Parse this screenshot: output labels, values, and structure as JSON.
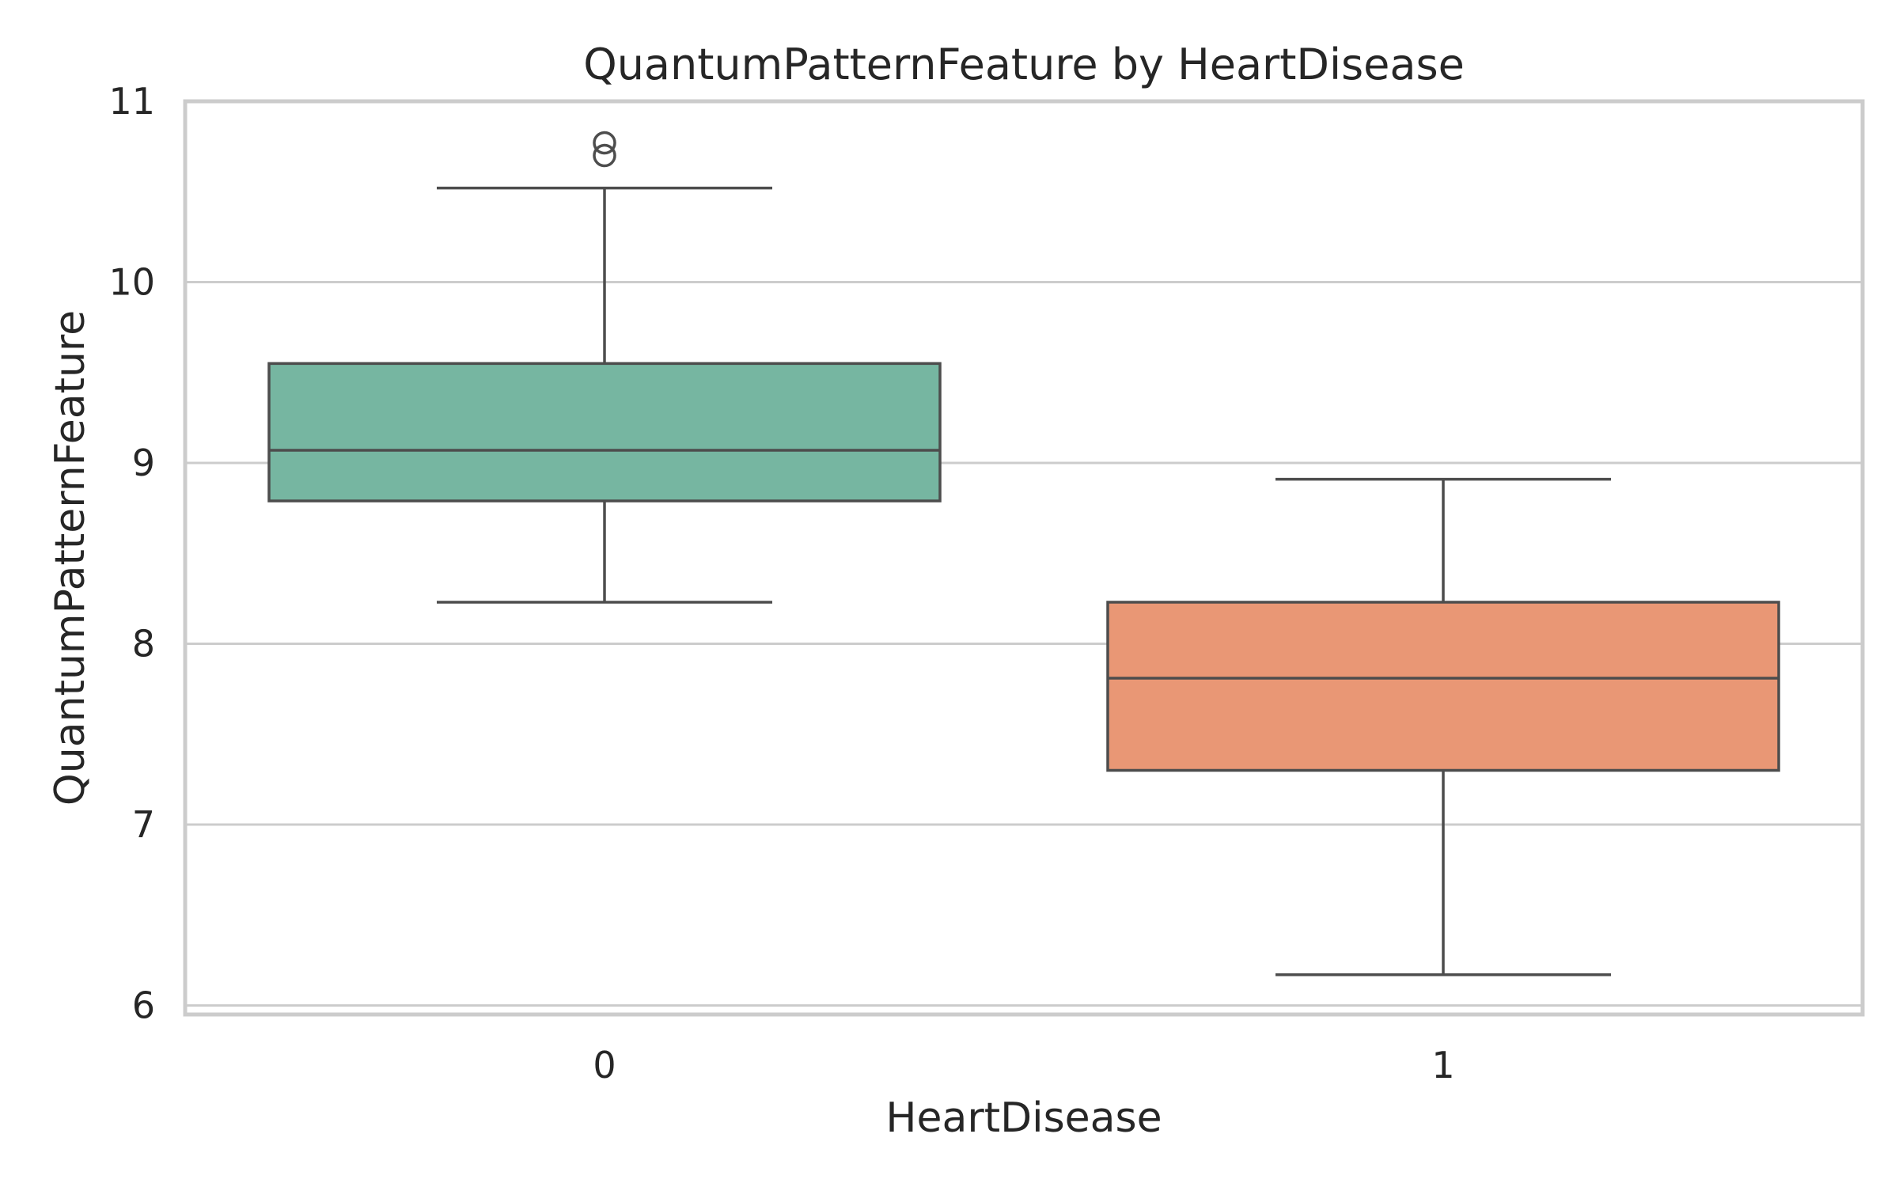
{
  "chart_data": {
    "type": "box",
    "title": "QuantumPatternFeature by HeartDisease",
    "xlabel": "HeartDisease",
    "ylabel": "QuantumPatternFeature",
    "categories": [
      "0",
      "1"
    ],
    "ylim": [
      5.95,
      11.0
    ],
    "yticks": [
      6,
      7,
      8,
      9,
      10,
      11
    ],
    "grid": true,
    "colors": [
      "#76b6a1",
      "#e99775"
    ],
    "boxes": [
      {
        "category": "0",
        "whisker_low": 8.23,
        "q1": 8.79,
        "median": 9.07,
        "q3": 9.55,
        "whisker_high": 10.52,
        "fliers": [
          10.7,
          10.77
        ]
      },
      {
        "category": "1",
        "whisker_low": 6.17,
        "q1": 7.3,
        "median": 7.81,
        "q3": 8.23,
        "whisker_high": 8.91,
        "fliers": []
      }
    ]
  }
}
